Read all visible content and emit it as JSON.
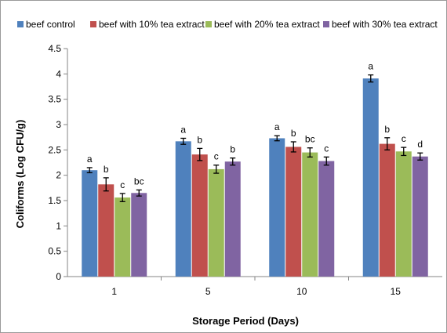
{
  "chart_data": {
    "type": "bar",
    "categories": [
      "1",
      "5",
      "10",
      "15"
    ],
    "series": [
      {
        "name": "beef control",
        "color": "#4f81bd",
        "values": [
          2.1,
          2.67,
          2.73,
          3.91
        ],
        "errors": [
          0.05,
          0.06,
          0.05,
          0.07
        ],
        "labels": [
          "a",
          "a",
          "a",
          "a"
        ]
      },
      {
        "name": "beef with 10% tea extract",
        "color": "#c0504d",
        "values": [
          1.82,
          2.41,
          2.56,
          2.62
        ],
        "errors": [
          0.13,
          0.12,
          0.1,
          0.12
        ],
        "labels": [
          "b",
          "b",
          "b",
          "b"
        ]
      },
      {
        "name": "beef with 20% tea extract",
        "color": "#9bbb59",
        "values": [
          1.56,
          2.12,
          2.45,
          2.47
        ],
        "errors": [
          0.08,
          0.08,
          0.09,
          0.08
        ],
        "labels": [
          "c",
          "c",
          "bc",
          "c"
        ]
      },
      {
        "name": "beef with 30% tea extract",
        "color": "#8064a2",
        "values": [
          1.65,
          2.27,
          2.28,
          2.37
        ],
        "errors": [
          0.06,
          0.07,
          0.08,
          0.07
        ],
        "labels": [
          "bc",
          "b",
          "c",
          "d"
        ]
      }
    ],
    "xlabel": "Storage Period (Days)",
    "ylabel": "Coliforms (Log CFU/g)",
    "ylim": [
      0,
      4.5
    ],
    "yticks": [
      "0",
      "0.5",
      "1",
      "1.5",
      "2",
      "2.5",
      "3",
      "3.5",
      "4",
      "4.5"
    ],
    "grid": false,
    "legend_position": "top"
  }
}
